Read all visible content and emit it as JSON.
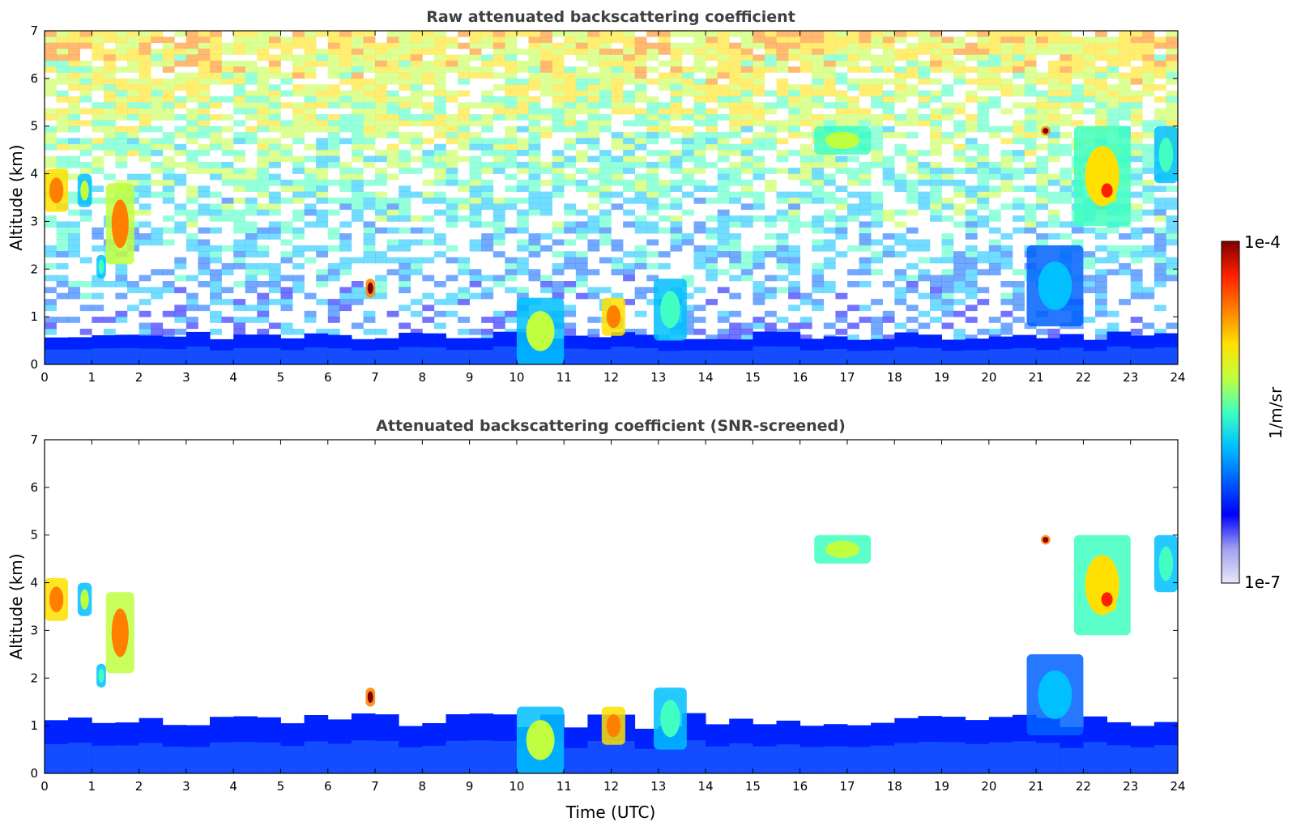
{
  "chart_data": [
    {
      "type": "heatmap",
      "title": "Raw attenuated backscattering coefficient",
      "xlabel": "",
      "ylabel": "Altitude (km)",
      "xlim": [
        0,
        24
      ],
      "ylim": [
        0,
        7
      ],
      "x_ticks": [
        0,
        1,
        2,
        3,
        4,
        5,
        6,
        7,
        8,
        9,
        10,
        11,
        12,
        13,
        14,
        15,
        16,
        17,
        18,
        19,
        20,
        21,
        22,
        23,
        24
      ],
      "y_ticks": [
        0,
        1,
        2,
        3,
        4,
        5,
        6,
        7
      ],
      "features": [
        {
          "time": [
            0.0,
            0.5
          ],
          "altitude": [
            3.2,
            4.1
          ],
          "level": 0.8
        },
        {
          "time": [
            0.7,
            1.0
          ],
          "altitude": [
            3.3,
            4.0
          ],
          "level": 0.55
        },
        {
          "time": [
            1.3,
            1.9
          ],
          "altitude": [
            2.1,
            3.8
          ],
          "level": 0.75
        },
        {
          "time": [
            1.1,
            1.3
          ],
          "altitude": [
            1.8,
            2.3
          ],
          "level": 0.5
        },
        {
          "time": [
            6.8,
            7.0
          ],
          "altitude": [
            1.4,
            1.8
          ],
          "level": 0.95
        },
        {
          "time": [
            10.0,
            11.0
          ],
          "altitude": [
            0.0,
            1.4
          ],
          "level": 0.55
        },
        {
          "time": [
            11.8,
            12.3
          ],
          "altitude": [
            0.6,
            1.4
          ],
          "level": 0.8
        },
        {
          "time": [
            12.9,
            13.6
          ],
          "altitude": [
            0.5,
            1.8
          ],
          "level": 0.5
        },
        {
          "time": [
            16.3,
            17.5
          ],
          "altitude": [
            4.4,
            5.0
          ],
          "level": 0.6
        },
        {
          "time": [
            21.1,
            21.3
          ],
          "altitude": [
            4.8,
            5.0
          ],
          "level": 0.95
        },
        {
          "time": [
            21.8,
            23.0
          ],
          "altitude": [
            2.9,
            5.0
          ],
          "level": 0.65
        },
        {
          "time": [
            22.3,
            22.7
          ],
          "altitude": [
            3.4,
            3.9
          ],
          "level": 0.85
        },
        {
          "time": [
            23.5,
            24.0
          ],
          "altitude": [
            3.8,
            5.0
          ],
          "level": 0.5
        },
        {
          "time": [
            20.8,
            22.0
          ],
          "altitude": [
            0.8,
            2.5
          ],
          "level": 0.4
        }
      ],
      "boundary_layer_top_km": 0.6
    },
    {
      "type": "heatmap",
      "title": "Attenuated backscattering coefficient (SNR-screened)",
      "xlabel": "Time (UTC)",
      "ylabel": "Altitude (km)",
      "xlim": [
        0,
        24
      ],
      "ylim": [
        0,
        7
      ],
      "x_ticks": [
        0,
        1,
        2,
        3,
        4,
        5,
        6,
        7,
        8,
        9,
        10,
        11,
        12,
        13,
        14,
        15,
        16,
        17,
        18,
        19,
        20,
        21,
        22,
        23,
        24
      ],
      "y_ticks": [
        0,
        1,
        2,
        3,
        4,
        5,
        6,
        7
      ],
      "features": [
        {
          "time": [
            0.0,
            0.5
          ],
          "altitude": [
            3.2,
            4.1
          ],
          "level": 0.8
        },
        {
          "time": [
            0.7,
            1.0
          ],
          "altitude": [
            3.3,
            4.0
          ],
          "level": 0.55
        },
        {
          "time": [
            1.3,
            1.9
          ],
          "altitude": [
            2.1,
            3.8
          ],
          "level": 0.75
        },
        {
          "time": [
            1.1,
            1.3
          ],
          "altitude": [
            1.8,
            2.3
          ],
          "level": 0.5
        },
        {
          "time": [
            6.8,
            7.0
          ],
          "altitude": [
            1.4,
            1.8
          ],
          "level": 0.95
        },
        {
          "time": [
            10.0,
            11.0
          ],
          "altitude": [
            0.0,
            1.4
          ],
          "level": 0.55
        },
        {
          "time": [
            11.8,
            12.3
          ],
          "altitude": [
            0.6,
            1.4
          ],
          "level": 0.8
        },
        {
          "time": [
            12.9,
            13.6
          ],
          "altitude": [
            0.5,
            1.8
          ],
          "level": 0.5
        },
        {
          "time": [
            16.3,
            17.5
          ],
          "altitude": [
            4.4,
            5.0
          ],
          "level": 0.6
        },
        {
          "time": [
            21.1,
            21.3
          ],
          "altitude": [
            4.8,
            5.0
          ],
          "level": 0.95
        },
        {
          "time": [
            21.8,
            23.0
          ],
          "altitude": [
            2.9,
            5.0
          ],
          "level": 0.65
        },
        {
          "time": [
            22.3,
            22.7
          ],
          "altitude": [
            3.4,
            3.9
          ],
          "level": 0.85
        },
        {
          "time": [
            23.5,
            24.0
          ],
          "altitude": [
            3.8,
            5.0
          ],
          "level": 0.5
        },
        {
          "time": [
            20.8,
            22.0
          ],
          "altitude": [
            0.8,
            2.5
          ],
          "level": 0.4
        }
      ],
      "boundary_layer_top_km": 1.1
    }
  ],
  "colorbar": {
    "label": "1/m/sr",
    "max_label": "1e-4",
    "min_label": "1e-7",
    "scale": "log",
    "colors": [
      "#e8e8f8",
      "#a0a0f0",
      "#0000ff",
      "#0060ff",
      "#00c0ff",
      "#40ffc0",
      "#c0ff40",
      "#ffe000",
      "#ff8000",
      "#ff2000",
      "#800000"
    ]
  }
}
